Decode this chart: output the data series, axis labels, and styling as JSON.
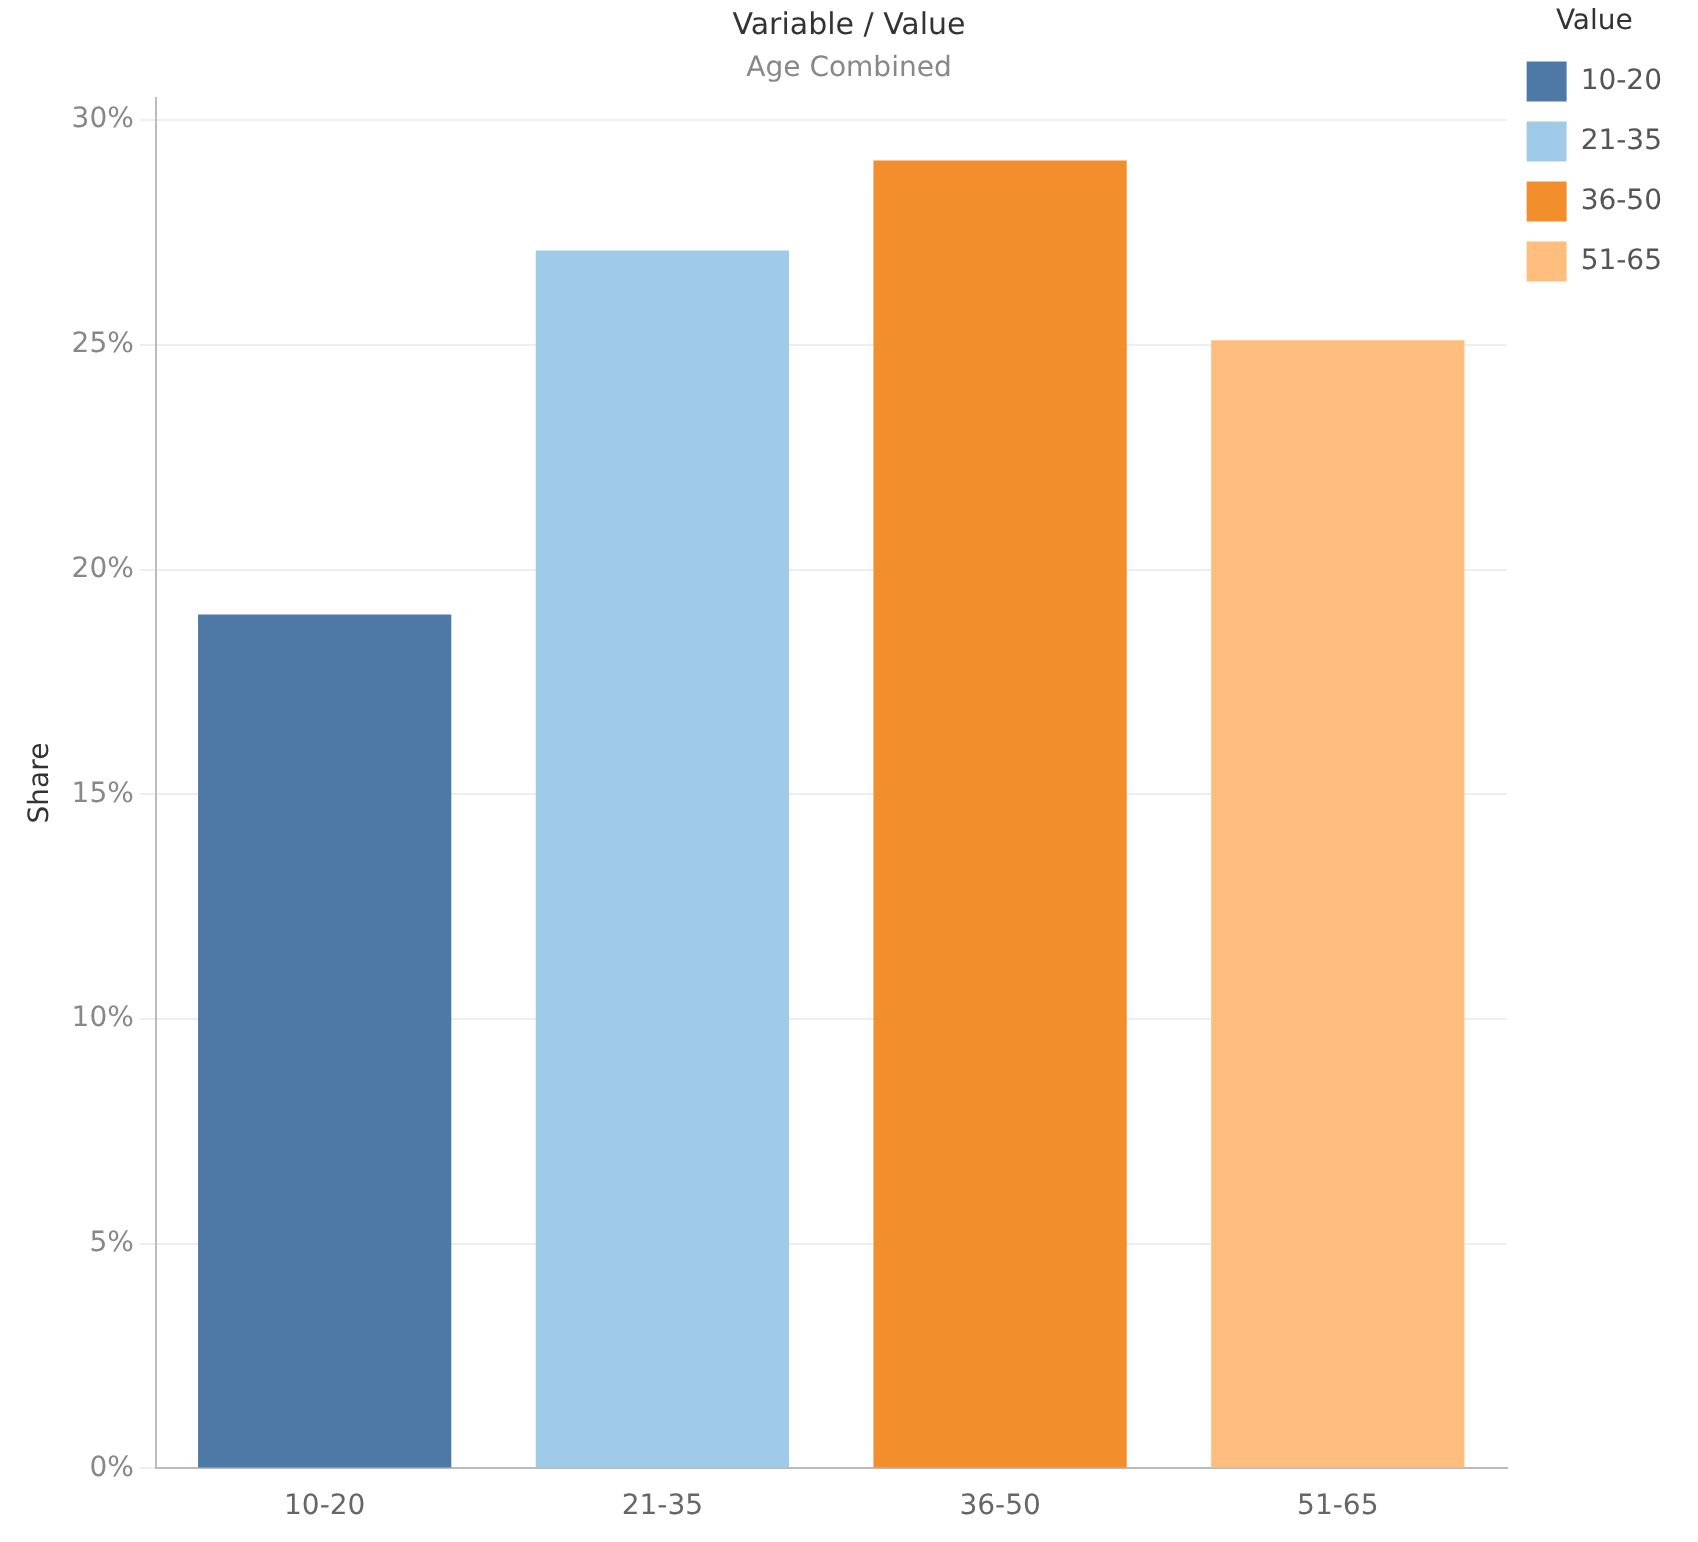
{
  "chart_data": {
    "type": "bar",
    "title": "Variable / Value",
    "subtitle": "Age Combined",
    "ylabel": "Share",
    "legend_title": "Value",
    "categories": [
      "10-20",
      "21-35",
      "36-50",
      "51-65"
    ],
    "series": [
      {
        "name": "10-20",
        "color": "#4e79a7",
        "values": [
          19,
          null,
          null,
          null
        ]
      },
      {
        "name": "21-35",
        "color": "#a0cbe8",
        "values": [
          null,
          27.1,
          null,
          null
        ]
      },
      {
        "name": "36-50",
        "color": "#f28e2b",
        "values": [
          null,
          null,
          29.1,
          null
        ]
      },
      {
        "name": "51-65",
        "color": "#ffbe7d",
        "values": [
          null,
          null,
          null,
          25.1
        ]
      }
    ],
    "ylim": [
      0,
      30.5
    ],
    "yticks": [
      {
        "value": 0,
        "label": "0%"
      },
      {
        "value": 5,
        "label": "5%"
      },
      {
        "value": 10,
        "label": "10%"
      },
      {
        "value": 15,
        "label": "15%"
      },
      {
        "value": 20,
        "label": "20%"
      },
      {
        "value": 25,
        "label": "25%"
      },
      {
        "value": 30,
        "label": "30%"
      }
    ],
    "grid": "y",
    "legend": "top right"
  }
}
